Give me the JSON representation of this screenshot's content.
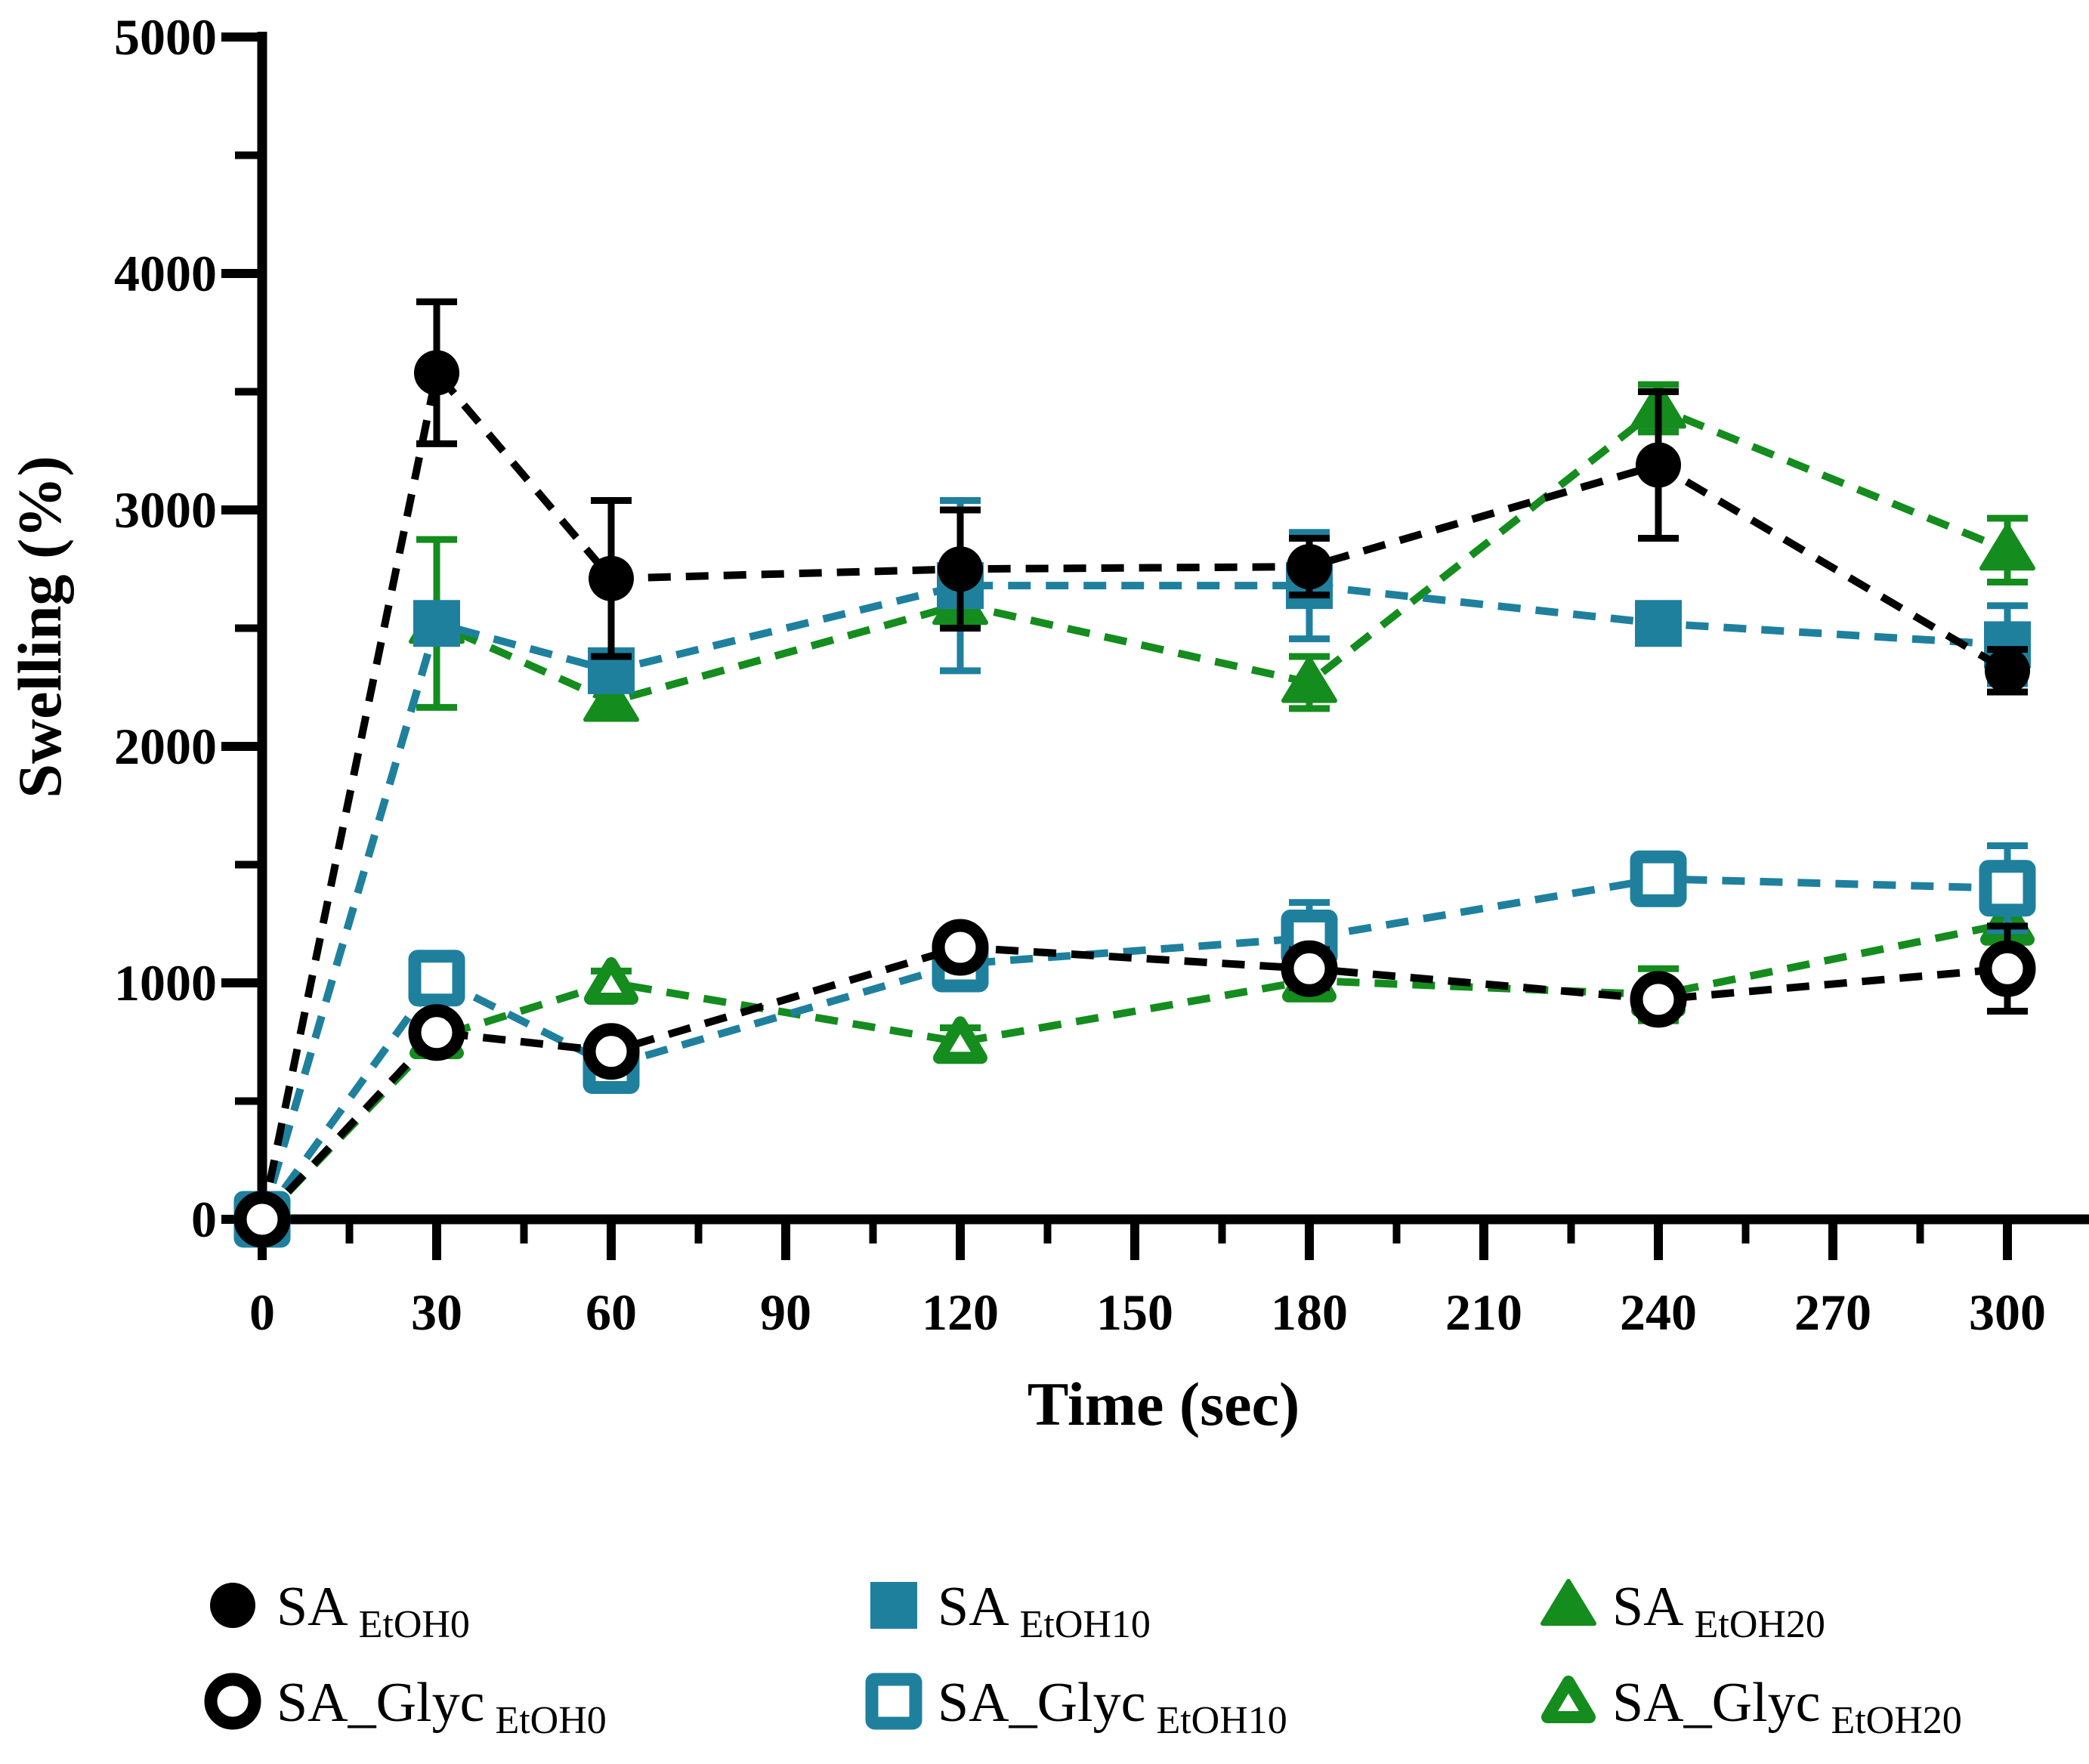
{
  "chart_data": {
    "type": "line",
    "title": "",
    "xlabel": "Time (sec)",
    "ylabel": "Swelling (%)",
    "xlim": [
      0,
      314
    ],
    "ylim": [
      0,
      5000
    ],
    "grid": false,
    "legend_position": "bottom",
    "x_ticks": [
      0,
      30,
      60,
      90,
      120,
      150,
      180,
      210,
      240,
      270,
      300
    ],
    "x_minor_ticks": [
      15,
      45,
      75,
      105,
      135,
      165,
      195,
      225,
      255,
      285
    ],
    "y_ticks": [
      0,
      1000,
      2000,
      3000,
      4000,
      5000
    ],
    "y_minor_ticks": [
      500,
      1500,
      2500,
      3500,
      4500
    ],
    "x": [
      0,
      30,
      60,
      120,
      180,
      240,
      300
    ],
    "series": [
      {
        "id": "SA_EtOH0",
        "name": "SA EtOH0",
        "legend_base": "SA",
        "legend_sub": "EtOH0",
        "marker": "circle",
        "fill": "filled",
        "color": "#000000",
        "line_style": "dashed",
        "values": [
          0,
          3580,
          2710,
          2750,
          2760,
          3190,
          2320
        ],
        "errors": [
          0,
          300,
          330,
          250,
          120,
          310,
          90
        ]
      },
      {
        "id": "SA_EtOH10",
        "name": "SA EtOH10",
        "legend_base": "SA",
        "legend_sub": "EtOH10",
        "marker": "square",
        "fill": "filled",
        "color": "#1f809e",
        "line_style": "dashed",
        "values": [
          0,
          2520,
          2320,
          2680,
          2680,
          2520,
          2430
        ],
        "errors": [
          0,
          80,
          30,
          360,
          225,
          60,
          165
        ]
      },
      {
        "id": "SA_EtOH20",
        "name": "SA EtOH20",
        "legend_base": "SA",
        "legend_sub": "EtOH20",
        "marker": "triangle",
        "fill": "filled",
        "color": "#148c1e",
        "line_style": "dashed",
        "values": [
          0,
          2520,
          2190,
          2600,
          2270,
          3430,
          2830
        ],
        "errors": [
          0,
          355,
          60,
          80,
          110,
          100,
          135
        ]
      },
      {
        "id": "SA_Glyc_EtOH0",
        "name": "SA_Glyc EtOH0",
        "legend_base": "SA_Glyc",
        "legend_sub": "EtOH0",
        "marker": "circle",
        "fill": "open",
        "color": "#000000",
        "line_style": "dashed",
        "values": [
          0,
          790,
          710,
          1150,
          1060,
          930,
          1060
        ],
        "errors": [
          0,
          60,
          50,
          60,
          80,
          60,
          180
        ]
      },
      {
        "id": "SA_Glyc_EtOH10",
        "name": "SA_Glyc EtOH10",
        "legend_base": "SA_Glyc",
        "legend_sub": "EtOH10",
        "marker": "square",
        "fill": "open",
        "color": "#1f809e",
        "line_style": "dashed",
        "values": [
          0,
          1020,
          650,
          1080,
          1190,
          1440,
          1400
        ],
        "errors": [
          0,
          50,
          50,
          70,
          150,
          60,
          180
        ]
      },
      {
        "id": "SA_Glyc_EtOH20",
        "name": "SA_Glyc EtOH20",
        "legend_base": "SA_Glyc",
        "legend_sub": "EtOH20",
        "marker": "triangle",
        "fill": "open",
        "color": "#148c1e",
        "line_style": "dashed",
        "values": [
          0,
          770,
          1000,
          750,
          1010,
          950,
          1250
        ],
        "errors": [
          0,
          60,
          50,
          60,
          60,
          110,
          160
        ]
      }
    ],
    "draw_order": [
      2,
      1,
      0,
      5,
      4,
      3
    ],
    "colors": {
      "black": "#000000",
      "teal": "#1f809e",
      "green": "#148c1e",
      "background": "#ffffff"
    }
  }
}
